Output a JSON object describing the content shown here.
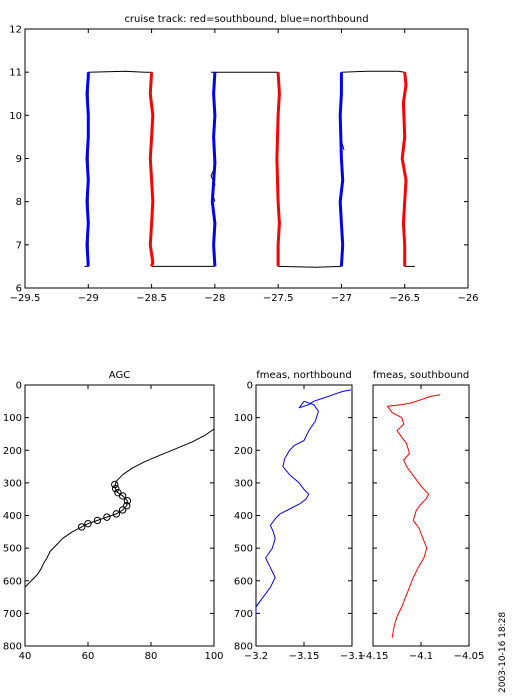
{
  "figure": {
    "timestamp": "2003-10-16  18:28"
  },
  "chart_data": [
    {
      "id": "track",
      "type": "line",
      "title": "cruise track: red=southbound, blue=northbound",
      "xlim": [
        -29.5,
        -26
      ],
      "ylim": [
        6,
        12
      ],
      "xticks": [
        -29.5,
        -29,
        -28.5,
        -28,
        -27.5,
        -27,
        -26.5,
        -26
      ],
      "yticks": [
        6,
        7,
        8,
        9,
        10,
        11,
        12
      ],
      "xtick_labels": [
        "−29.5",
        "−29",
        "−28.5",
        "−28",
        "−27.5",
        "−27",
        "−26.5",
        "−26"
      ],
      "ytick_labels": [
        "6",
        "7",
        "8",
        "9",
        "10",
        "11",
        "12"
      ],
      "series": [
        {
          "color": "#000000",
          "x": [
            -29.03,
            -29.0,
            -29.0,
            -28.7,
            -28.55,
            -28.5
          ],
          "y": [
            6.5,
            6.5,
            11.0,
            11.02,
            11.0,
            11.0
          ]
        },
        {
          "color": "#000000",
          "x": [
            -28.5,
            -28.5,
            -28.0,
            -28.0
          ],
          "y": [
            6.5,
            6.5,
            6.5,
            6.5
          ]
        },
        {
          "color": "#000000",
          "x": [
            -28.03,
            -28.0,
            -27.6,
            -27.5,
            -27.5
          ],
          "y": [
            11.0,
            11.0,
            11.0,
            11.0,
            11.0
          ]
        },
        {
          "color": "#000000",
          "x": [
            -27.5,
            -27.2,
            -27.0
          ],
          "y": [
            6.5,
            6.48,
            6.5
          ]
        },
        {
          "color": "#000000",
          "x": [
            -27.0,
            -26.8,
            -26.55,
            -26.5
          ],
          "y": [
            11.0,
            11.02,
            11.02,
            11.0
          ]
        },
        {
          "color": "#000000",
          "x": [
            -26.5,
            -26.42
          ],
          "y": [
            6.5,
            6.5
          ]
        },
        {
          "color": "#000000",
          "x": [
            -28.0,
            -28.02,
            -28.0,
            -28.03,
            -28.0
          ],
          "y": [
            8.0,
            8.2,
            8.4,
            8.6,
            8.8
          ]
        },
        {
          "color": "#000000",
          "x": [
            -26.98,
            -27.0
          ],
          "y": [
            9.2,
            9.4
          ]
        },
        {
          "color": "#0000ff",
          "x": [
            -29.0,
            -29.01,
            -29.0,
            -29.01,
            -29.0,
            -29.01,
            -29.0,
            -29.0,
            -29.01,
            -29.0,
            -29.0
          ],
          "y": [
            6.5,
            7.0,
            7.5,
            8.0,
            8.5,
            9.0,
            9.5,
            10.0,
            10.5,
            10.9,
            11.0
          ]
        },
        {
          "color": "#ff0000",
          "x": [
            -28.5,
            -28.51,
            -28.49,
            -28.5,
            -28.51,
            -28.5,
            -28.49,
            -28.5,
            -28.51,
            -28.49,
            -28.5
          ],
          "y": [
            11.0,
            10.5,
            10.0,
            9.5,
            9.0,
            8.5,
            8.0,
            7.5,
            7.0,
            6.6,
            6.5
          ]
        },
        {
          "color": "#0000ff",
          "x": [
            -28.0,
            -28.01,
            -28.0,
            -28.02,
            -28.0,
            -28.01,
            -28.0,
            -28.01,
            -28.0
          ],
          "y": [
            6.5,
            7.0,
            7.5,
            8.0,
            8.9,
            9.5,
            10.0,
            10.5,
            11.0
          ]
        },
        {
          "color": "#ff0000",
          "x": [
            -27.5,
            -27.49,
            -27.5,
            -27.51,
            -27.5,
            -27.49,
            -27.5,
            -27.5
          ],
          "y": [
            11.0,
            10.5,
            10.0,
            9.0,
            8.0,
            7.5,
            7.0,
            6.5
          ]
        },
        {
          "color": "#0000ff",
          "x": [
            -27.0,
            -26.99,
            -27.0,
            -27.01,
            -26.99,
            -27.0,
            -27.01,
            -27.0,
            -27.0
          ],
          "y": [
            6.5,
            7.0,
            7.5,
            8.0,
            8.5,
            9.0,
            10.0,
            10.5,
            11.0
          ]
        },
        {
          "color": "#ff0000",
          "x": [
            -26.5,
            -26.49,
            -26.51,
            -26.5,
            -26.52,
            -26.49,
            -26.5,
            -26.51,
            -26.5,
            -26.5
          ],
          "y": [
            11.0,
            10.7,
            10.3,
            9.5,
            9.0,
            8.5,
            8.0,
            7.5,
            7.0,
            6.5
          ]
        }
      ],
      "markers": []
    },
    {
      "id": "agc",
      "type": "line",
      "title": "AGC",
      "xlim": [
        40,
        100
      ],
      "ylim": [
        800,
        0
      ],
      "xticks": [
        40,
        60,
        80,
        100
      ],
      "yticks": [
        0,
        100,
        200,
        300,
        400,
        500,
        600,
        700,
        800
      ],
      "xtick_labels": [
        "40",
        "60",
        "80",
        "100"
      ],
      "ytick_labels": [
        "0",
        "100",
        "200",
        "300",
        "400",
        "500",
        "600",
        "700",
        "800"
      ],
      "series": [
        {
          "color": "#000000",
          "x": [
            100,
            97,
            93,
            88,
            83,
            78,
            74,
            71,
            69,
            68.5,
            68.8,
            69.5,
            71,
            72.5,
            72.3,
            71,
            69,
            66,
            63,
            60,
            58,
            55,
            52,
            50,
            48,
            47,
            46,
            45.5,
            45,
            44,
            43,
            42,
            41,
            40
          ],
          "y": [
            135,
            155,
            175,
            195,
            215,
            235,
            255,
            275,
            295,
            310,
            320,
            330,
            340,
            355,
            370,
            383,
            395,
            405,
            415,
            425,
            435,
            450,
            470,
            490,
            510,
            530,
            545,
            555,
            565,
            580,
            590,
            600,
            610,
            620
          ]
        }
      ],
      "markers": [
        {
          "x": [
            68.5,
            68.8,
            69.5,
            71,
            72.5,
            72.3,
            71,
            69,
            66,
            63,
            60,
            58
          ],
          "y": [
            305,
            318,
            330,
            340,
            355,
            370,
            383,
            395,
            405,
            415,
            425,
            435
          ]
        }
      ]
    },
    {
      "id": "fmeas_north",
      "type": "line",
      "title": "fmeas, northbound",
      "xlim": [
        -3.2,
        -3.1
      ],
      "ylim": [
        800,
        0
      ],
      "xticks": [
        -3.2,
        -3.15,
        -3.1
      ],
      "yticks": [
        0,
        100,
        200,
        300,
        400,
        500,
        600,
        700,
        800
      ],
      "xtick_labels": [
        "−3.2",
        "−3.15",
        "−3.1"
      ],
      "ytick_labels": [
        "0",
        "100",
        "200",
        "300",
        "400",
        "500",
        "600",
        "700",
        "800"
      ],
      "series": [
        {
          "color": "#0000ff",
          "x": [
            -3.101,
            -3.11,
            -3.12,
            -3.13,
            -3.14,
            -3.145,
            -3.155,
            -3.15,
            -3.14,
            -3.135,
            -3.138,
            -3.145,
            -3.15,
            -3.16,
            -3.165,
            -3.17,
            -3.172,
            -3.165,
            -3.155,
            -3.15,
            -3.145,
            -3.148,
            -3.155,
            -3.165,
            -3.175,
            -3.18,
            -3.185,
            -3.182,
            -3.18,
            -3.183,
            -3.19,
            -3.185,
            -3.18,
            -3.185,
            -3.19,
            -3.195,
            -3.2,
            -3.2
          ],
          "y": [
            15,
            20,
            30,
            40,
            50,
            60,
            70,
            50,
            60,
            80,
            110,
            140,
            170,
            185,
            200,
            225,
            250,
            275,
            300,
            320,
            335,
            350,
            365,
            380,
            395,
            410,
            430,
            450,
            470,
            500,
            530,
            560,
            590,
            620,
            640,
            660,
            680,
            700
          ]
        }
      ],
      "markers": []
    },
    {
      "id": "fmeas_south",
      "type": "line",
      "title": "fmeas, southbound",
      "xlim": [
        -4.15,
        -4.05
      ],
      "ylim": [
        800,
        0
      ],
      "xticks": [
        -4.15,
        -4.1,
        -4.05
      ],
      "yticks": [
        0,
        100,
        200,
        300,
        400,
        500,
        600,
        700,
        800
      ],
      "xtick_labels": [
        "−4.15",
        "−4.1",
        "−4.05"
      ],
      "ytick_labels": [],
      "series": [
        {
          "color": "#ff0000",
          "x": [
            -4.08,
            -4.09,
            -4.1,
            -4.11,
            -4.12,
            -4.135,
            -4.13,
            -4.12,
            -4.118,
            -4.125,
            -4.12,
            -4.115,
            -4.112,
            -4.118,
            -4.115,
            -4.11,
            -4.105,
            -4.1,
            -4.092,
            -4.095,
            -4.1,
            -4.105,
            -4.108,
            -4.102,
            -4.098,
            -4.094,
            -4.097,
            -4.103,
            -4.108,
            -4.112,
            -4.116,
            -4.12,
            -4.125,
            -4.128,
            -4.13
          ],
          "y": [
            30,
            35,
            45,
            55,
            60,
            65,
            85,
            100,
            120,
            140,
            160,
            180,
            210,
            230,
            250,
            270,
            290,
            310,
            335,
            350,
            365,
            385,
            415,
            440,
            470,
            500,
            530,
            560,
            590,
            620,
            650,
            680,
            710,
            740,
            775
          ]
        }
      ],
      "markers": []
    }
  ]
}
